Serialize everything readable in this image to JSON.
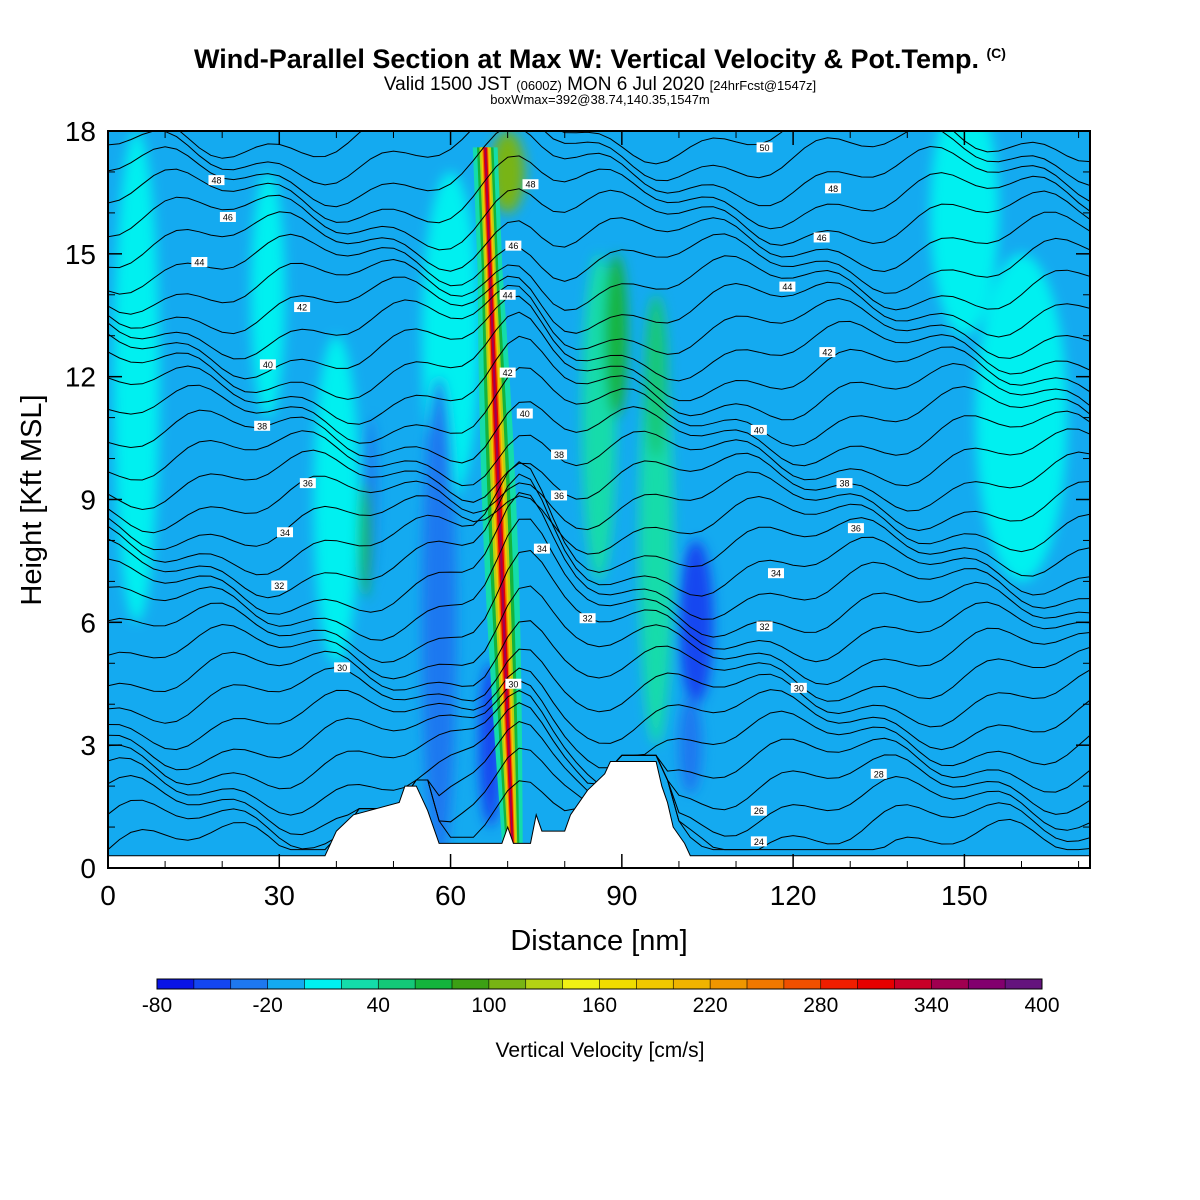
{
  "title": {
    "main": "Wind-Parallel Section at Max W: Vertical Velocity & Pot.Temp.",
    "copyright": "(C)",
    "valid_prefix": "Valid 1500 JST",
    "valid_utc": "(0600Z)",
    "valid_date": "MON 6 Jul 2020",
    "forecast": "[24hrFcst@1547z]",
    "boxwmax": "boxWmax=392@38.74,140.35,1547m"
  },
  "chart_data": {
    "type": "heatmap",
    "xlabel": "Distance [nm]",
    "ylabel": "Height [Kft MSL]",
    "xlim": [
      0,
      172
    ],
    "ylim": [
      0,
      18
    ],
    "x_ticks": [
      "0",
      "30",
      "60",
      "90",
      "120",
      "150"
    ],
    "y_ticks": [
      "0",
      "3",
      "6",
      "9",
      "12",
      "15",
      "18"
    ],
    "colorbar": {
      "label": "Vertical Velocity [cm/s]",
      "tick_labels": [
        "-80",
        "-20",
        "40",
        "100",
        "160",
        "220",
        "280",
        "340",
        "400"
      ],
      "levels": [
        -80,
        -60,
        -40,
        -20,
        0,
        20,
        40,
        60,
        80,
        100,
        120,
        140,
        160,
        180,
        200,
        220,
        240,
        260,
        280,
        300,
        320,
        340,
        360,
        380,
        400
      ],
      "colors": [
        "#0a14e6",
        "#1446f0",
        "#1e78f0",
        "#14aaf0",
        "#00f0f0",
        "#14dcaa",
        "#14c878",
        "#14b43c",
        "#3ca014",
        "#78b414",
        "#b4d214",
        "#f0f014",
        "#f0dc00",
        "#f0c800",
        "#f0b400",
        "#f09600",
        "#f07800",
        "#f05000",
        "#f01e00",
        "#e60000",
        "#c80028",
        "#a00050",
        "#82006e",
        "#64147d"
      ]
    },
    "theta_contour_labels": [
      {
        "x": 16,
        "h": 14.8,
        "label": "44"
      },
      {
        "x": 21,
        "h": 15.9,
        "label": "46"
      },
      {
        "x": 19,
        "h": 16.8,
        "label": "48"
      },
      {
        "x": 34,
        "h": 13.7,
        "label": "42"
      },
      {
        "x": 28,
        "h": 12.3,
        "label": "40"
      },
      {
        "x": 27,
        "h": 10.8,
        "label": "38"
      },
      {
        "x": 35,
        "h": 9.4,
        "label": "36"
      },
      {
        "x": 31,
        "h": 8.2,
        "label": "34"
      },
      {
        "x": 30,
        "h": 6.9,
        "label": "32"
      },
      {
        "x": 41,
        "h": 4.9,
        "label": "30"
      },
      {
        "x": 74,
        "h": 16.7,
        "label": "48"
      },
      {
        "x": 71,
        "h": 15.2,
        "label": "46"
      },
      {
        "x": 70,
        "h": 14.0,
        "label": "44"
      },
      {
        "x": 70,
        "h": 12.1,
        "label": "42"
      },
      {
        "x": 73,
        "h": 11.1,
        "label": "40"
      },
      {
        "x": 79,
        "h": 10.1,
        "label": "38"
      },
      {
        "x": 79,
        "h": 9.1,
        "label": "36"
      },
      {
        "x": 76,
        "h": 7.8,
        "label": "34"
      },
      {
        "x": 84,
        "h": 6.1,
        "label": "32"
      },
      {
        "x": 71,
        "h": 4.5,
        "label": "30"
      },
      {
        "x": 115,
        "h": 17.6,
        "label": "50"
      },
      {
        "x": 127,
        "h": 16.6,
        "label": "48"
      },
      {
        "x": 125,
        "h": 15.4,
        "label": "46"
      },
      {
        "x": 119,
        "h": 14.2,
        "label": "44"
      },
      {
        "x": 126,
        "h": 12.6,
        "label": "42"
      },
      {
        "x": 114,
        "h": 10.7,
        "label": "40"
      },
      {
        "x": 129,
        "h": 9.4,
        "label": "38"
      },
      {
        "x": 131,
        "h": 8.3,
        "label": "36"
      },
      {
        "x": 117,
        "h": 7.2,
        "label": "34"
      },
      {
        "x": 115,
        "h": 5.9,
        "label": "32"
      },
      {
        "x": 121,
        "h": 4.4,
        "label": "30"
      },
      {
        "x": 135,
        "h": 2.3,
        "label": "28"
      },
      {
        "x": 114,
        "h": 1.4,
        "label": "26"
      },
      {
        "x": 114,
        "h": 0.65,
        "label": "24"
      }
    ],
    "terrain": [
      [
        0,
        0.3
      ],
      [
        38,
        0.3
      ],
      [
        39,
        0.6
      ],
      [
        40,
        0.9
      ],
      [
        43,
        1.3
      ],
      [
        51,
        1.6
      ],
      [
        52,
        2.0
      ],
      [
        54,
        2.0
      ],
      [
        56,
        1.4
      ],
      [
        57,
        1.0
      ],
      [
        58,
        0.6
      ],
      [
        69,
        0.6
      ],
      [
        70,
        1.0
      ],
      [
        71,
        0.6
      ],
      [
        74,
        0.6
      ],
      [
        75,
        1.3
      ],
      [
        76,
        0.9
      ],
      [
        80,
        0.9
      ],
      [
        81,
        1.3
      ],
      [
        84,
        1.9
      ],
      [
        87,
        2.3
      ],
      [
        88,
        2.6
      ],
      [
        96,
        2.6
      ],
      [
        97,
        2.0
      ],
      [
        98,
        1.6
      ],
      [
        99,
        1.0
      ],
      [
        101,
        0.6
      ],
      [
        102,
        0.3
      ],
      [
        172,
        0.3
      ]
    ]
  }
}
